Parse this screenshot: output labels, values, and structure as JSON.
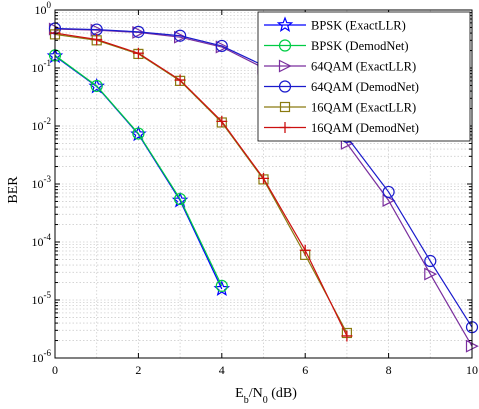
{
  "chart_data": {
    "type": "line",
    "title": "",
    "xlabel": {
      "main": "E",
      "sub1": "b",
      "mid": "/N",
      "sub2": "0",
      "tail": " (dB)"
    },
    "ylabel": "BER",
    "xlim": [
      0,
      10
    ],
    "ylim": [
      1e-06,
      1
    ],
    "yscale": "log",
    "grid": true,
    "legend_position": "top-right",
    "x_ticks": [
      "0",
      "2",
      "4",
      "6",
      "8",
      "10"
    ],
    "y_ticks": [
      {
        "base": "10",
        "exp": "0"
      },
      {
        "base": "10",
        "exp": "-1"
      },
      {
        "base": "10",
        "exp": "-2"
      },
      {
        "base": "10",
        "exp": "-3"
      },
      {
        "base": "10",
        "exp": "-4"
      },
      {
        "base": "10",
        "exp": "-5"
      },
      {
        "base": "10",
        "exp": "-6"
      }
    ],
    "series": [
      {
        "name": "BPSK (ExactLLR)",
        "color": "#0000ff",
        "marker": "star",
        "x": [
          0,
          1,
          2,
          3,
          4
        ],
        "y": [
          0.16,
          0.048,
          0.0072,
          0.00052,
          1.55e-05
        ]
      },
      {
        "name": "BPSK (DemodNet)",
        "color": "#00cc44",
        "marker": "circle",
        "x": [
          0,
          1,
          2,
          3,
          4
        ],
        "y": [
          0.165,
          0.049,
          0.0074,
          0.00055,
          1.75e-05
        ]
      },
      {
        "name": "64QAM (ExactLLR)",
        "color": "#7a2f9e",
        "marker": "triangle-right",
        "x": [
          0,
          1,
          2,
          3,
          4,
          5,
          6,
          7,
          8,
          9,
          10
        ],
        "y": [
          0.47,
          0.45,
          0.41,
          0.34,
          0.23,
          0.1,
          0.03,
          0.005,
          0.00052,
          2.8e-05,
          1.6e-06
        ]
      },
      {
        "name": "64QAM (DemodNet)",
        "color": "#1a1acc",
        "marker": "circle",
        "x": [
          0,
          1,
          2,
          3,
          4,
          5,
          6,
          7,
          8,
          9,
          10
        ],
        "y": [
          0.48,
          0.46,
          0.42,
          0.36,
          0.24,
          0.11,
          0.035,
          0.0065,
          0.00073,
          4.7e-05,
          3.4e-06
        ]
      },
      {
        "name": "16QAM (ExactLLR)",
        "color": "#8a7a10",
        "marker": "square",
        "x": [
          0,
          1,
          2,
          3,
          4,
          5,
          6,
          7
        ],
        "y": [
          0.38,
          0.3,
          0.175,
          0.06,
          0.0115,
          0.0012,
          6e-05,
          2.7e-06
        ]
      },
      {
        "name": "16QAM (DemodNet)",
        "color": "#cc1010",
        "marker": "plus",
        "x": [
          0,
          1,
          2,
          3,
          4,
          5,
          6,
          7
        ],
        "y": [
          0.4,
          0.31,
          0.18,
          0.062,
          0.012,
          0.00125,
          7.2e-05,
          2.4e-06
        ]
      }
    ]
  }
}
